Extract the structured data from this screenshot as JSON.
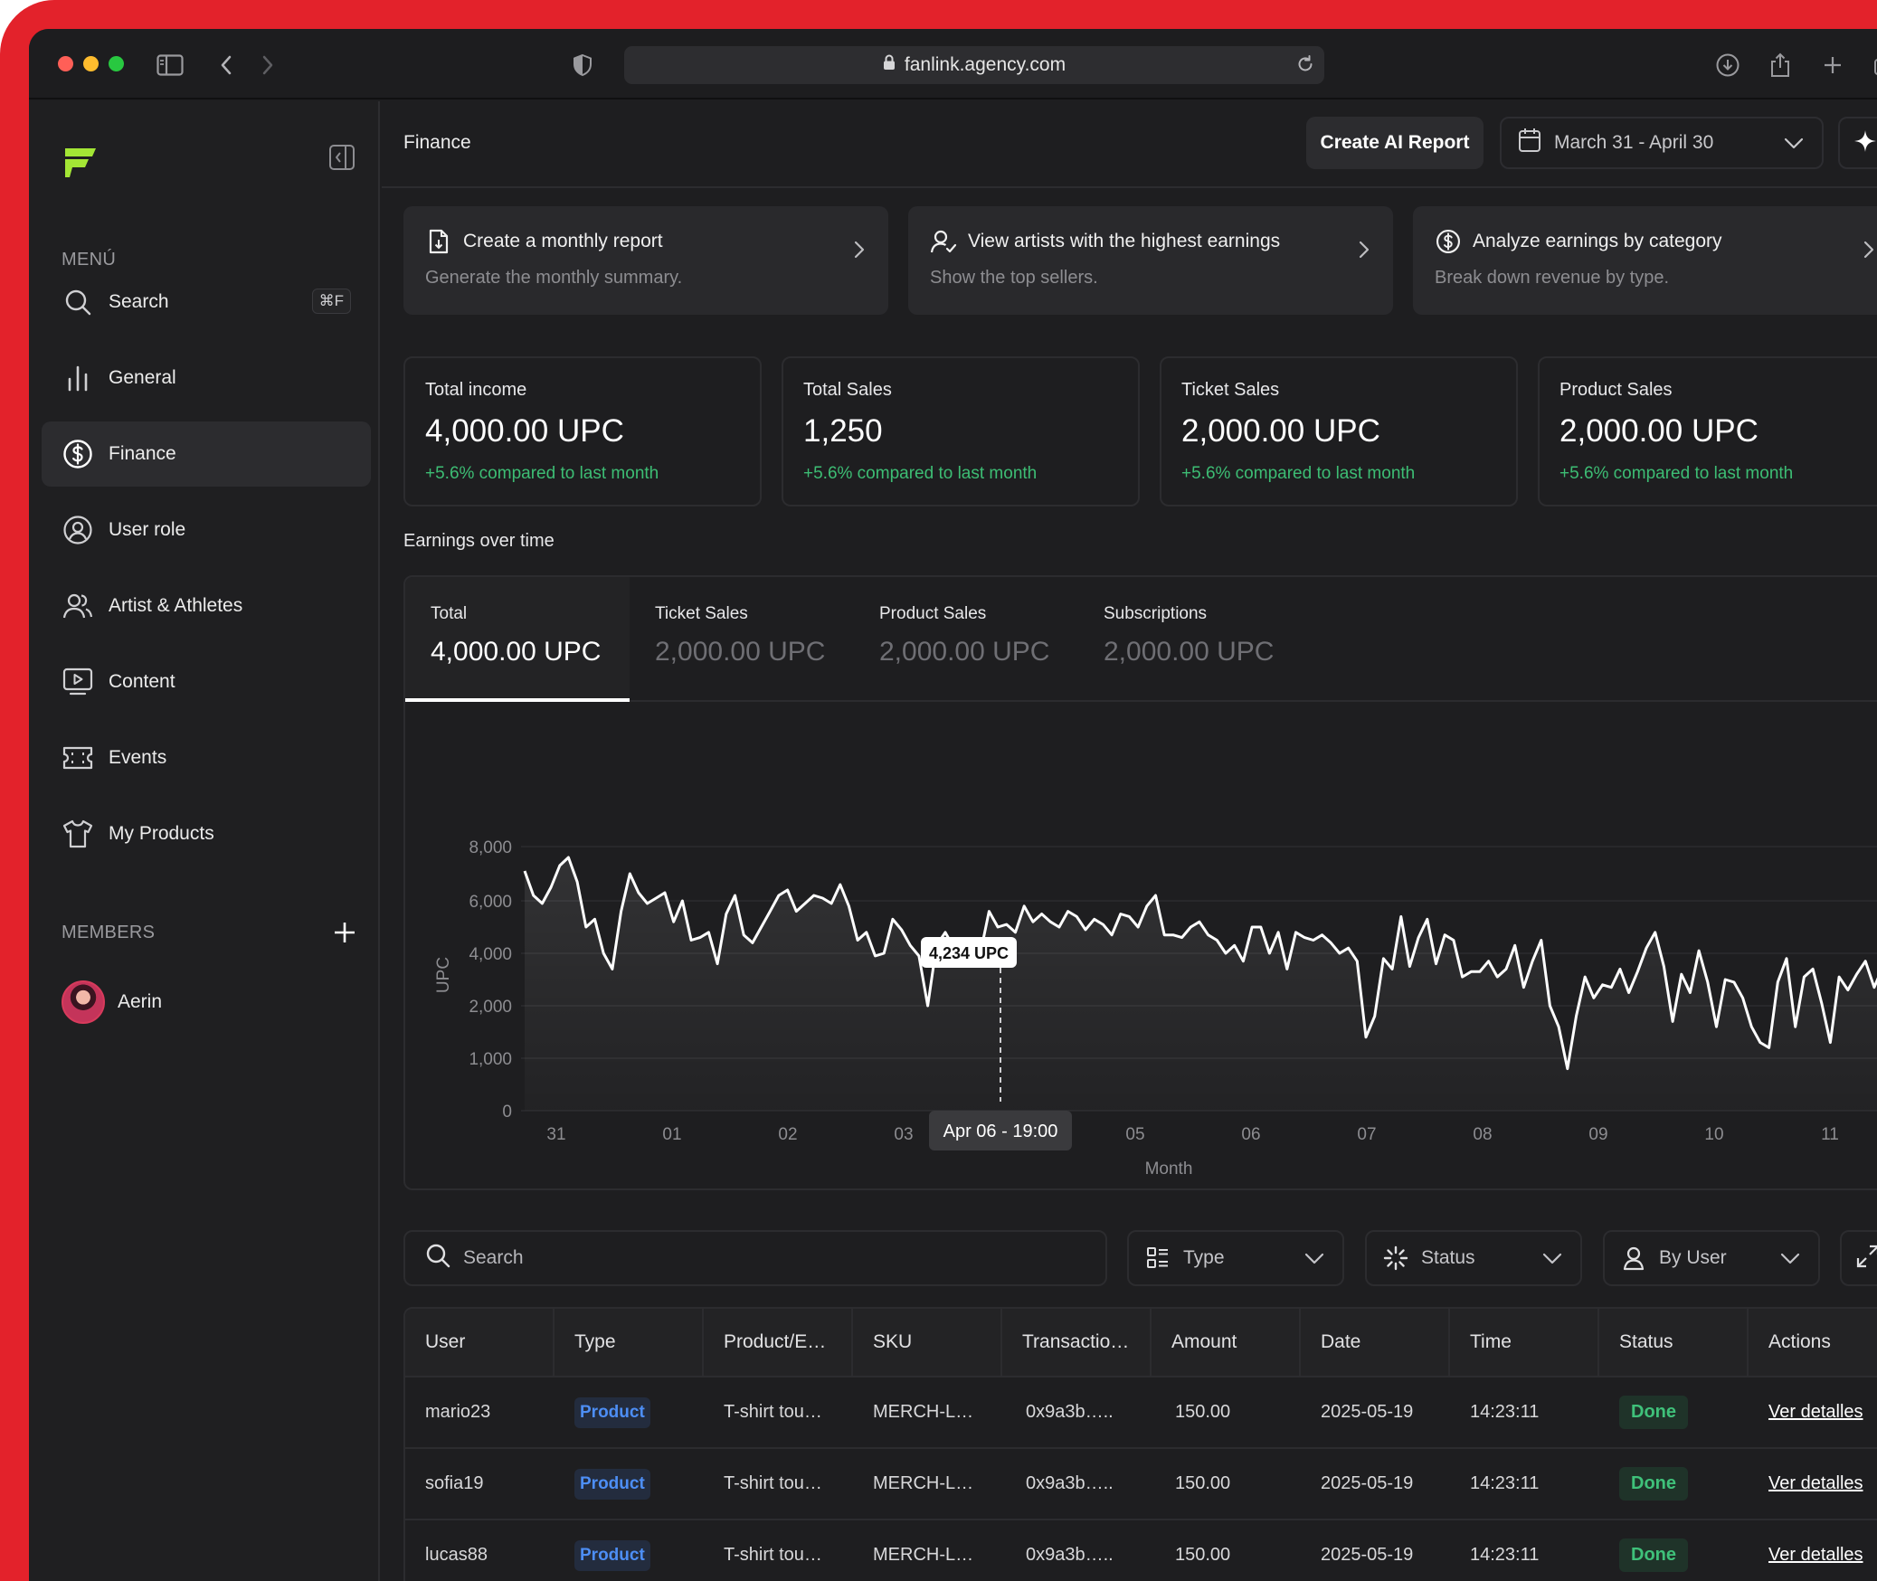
{
  "browser": {
    "url": "fanlink.agency.com"
  },
  "sidebar": {
    "menu_label": "MENÚ",
    "search": {
      "label": "Search",
      "shortcut": "⌘F"
    },
    "items": [
      {
        "label": "General",
        "icon": "bar-chart-icon"
      },
      {
        "label": "Finance",
        "icon": "dollar-circle-icon",
        "active": true
      },
      {
        "label": "User role",
        "icon": "user-circle-icon"
      },
      {
        "label": "Artist & Athletes",
        "icon": "users-icon"
      },
      {
        "label": "Content",
        "icon": "monitor-play-icon"
      },
      {
        "label": "Events",
        "icon": "ticket-icon"
      },
      {
        "label": "My Products",
        "icon": "shirt-icon"
      }
    ],
    "members_label": "MEMBERS",
    "members": [
      {
        "name": "Aerin"
      }
    ]
  },
  "header": {
    "title": "Finance",
    "ai_button": "Create AI Report",
    "date_range": "March 31 - April 30"
  },
  "quick_actions": [
    {
      "title": "Create a monthly report",
      "subtitle": "Generate the monthly summary.",
      "icon": "file-icon"
    },
    {
      "title": "View artists with the highest earnings",
      "subtitle": "Show the top sellers.",
      "icon": "user-check-icon"
    },
    {
      "title": "Analyze earnings by category",
      "subtitle": "Break down revenue by type.",
      "icon": "dollar-circle-icon"
    }
  ],
  "stats": [
    {
      "label": "Total income",
      "value": "4,000.00 UPC",
      "delta": "+5.6% compared to last month"
    },
    {
      "label": "Total Sales",
      "value": "1,250",
      "delta": "+5.6% compared to last month"
    },
    {
      "label": "Ticket Sales",
      "value": "2,000.00 UPC",
      "delta": "+5.6% compared to last month"
    },
    {
      "label": "Product Sales",
      "value": "2,000.00 UPC",
      "delta": "+5.6% compared to last month"
    }
  ],
  "chart_section": {
    "title": "Earnings over time",
    "tabs": [
      {
        "label": "Total",
        "value": "4,000.00 UPC",
        "active": true
      },
      {
        "label": "Ticket Sales",
        "value": "2,000.00 UPC"
      },
      {
        "label": "Product Sales",
        "value": "2,000.00 UPC"
      },
      {
        "label": "Subscriptions",
        "value": "2,000.00 UPC"
      }
    ]
  },
  "chart_data": {
    "type": "area",
    "ylabel": "UPC",
    "xlabel": "Month",
    "yticks": [
      0,
      1000,
      2000,
      4000,
      6000,
      8000
    ],
    "ytick_labels": [
      "0",
      "1,000",
      "2,000",
      "4,000",
      "6,000",
      "8,000"
    ],
    "ylim": [
      0,
      8000
    ],
    "xtick_labels": [
      "31",
      "01",
      "02",
      "03",
      "05",
      "06",
      "07",
      "08",
      "09",
      "10",
      "11"
    ],
    "grid": true,
    "line_color": "#ffffff",
    "tooltip": {
      "value_label": "4,234 UPC",
      "x_label": "Apr 06 - 19:00"
    },
    "series": [
      {
        "values": [
          7100,
          6200,
          5900,
          6500,
          7300,
          7600,
          6700,
          5000,
          5300,
          4000,
          3400,
          5600,
          7000,
          6300,
          5900,
          6100,
          6300,
          5200,
          6000,
          4500,
          4600,
          4800,
          3600,
          5500,
          6200,
          4700,
          4400,
          5000,
          5600,
          6200,
          6400,
          5600,
          5900,
          6200,
          6100,
          5900,
          6600,
          5800,
          4500,
          4800,
          3900,
          4000,
          5300,
          4900,
          4300,
          3900,
          2000,
          4300,
          4800,
          4200,
          3800,
          3600,
          4000,
          5600,
          5000,
          5100,
          4800,
          5800,
          5200,
          5500,
          5200,
          5000,
          5600,
          5400,
          4900,
          5300,
          5100,
          4700,
          5500,
          5400,
          5000,
          5800,
          6200,
          4700,
          4700,
          4600,
          5000,
          5200,
          4700,
          4500,
          4000,
          4300,
          3700,
          5000,
          5000,
          4000,
          4800,
          3400,
          4800,
          4600,
          4500,
          4700,
          4400,
          4000,
          4200,
          3700,
          1400,
          1800,
          3800,
          3400,
          5400,
          3500,
          4600,
          5300,
          3600,
          4700,
          4500,
          3100,
          3300,
          3300,
          3700,
          3100,
          3400,
          4300,
          2700,
          3700,
          4500,
          2000,
          1600,
          800,
          1800,
          3100,
          2300,
          2800,
          2700,
          3400,
          2500,
          3300,
          4200,
          4800,
          3500,
          1700,
          3200,
          2500,
          4100,
          2900,
          1600,
          3000,
          2900,
          2300,
          1600,
          1300,
          1200,
          2900,
          3800,
          1600,
          3100,
          3400,
          2100,
          1300,
          3100,
          2600,
          3200,
          3700,
          2700,
          3500,
          3300,
          2100,
          2300,
          3400,
          3300
        ]
      }
    ]
  },
  "filters": {
    "search_placeholder": "Search",
    "type": "Type",
    "status": "Status",
    "by_user": "By User"
  },
  "table": {
    "columns": [
      "User",
      "Type",
      "Product/E…",
      "SKU",
      "Transactio…",
      "Amount",
      "Date",
      "Time",
      "Status",
      "Actions"
    ],
    "rows": [
      {
        "user": "mario23",
        "type": "Product",
        "product": "T-shirt tou…",
        "sku": "MERCH-L…",
        "tx": "0x9a3b…..",
        "amount": "150.00",
        "date": "2025-05-19",
        "time": "14:23:11",
        "status": "Done",
        "action": "Ver detalles"
      },
      {
        "user": "sofia19",
        "type": "Product",
        "product": "T-shirt tou…",
        "sku": "MERCH-L…",
        "tx": "0x9a3b…..",
        "amount": "150.00",
        "date": "2025-05-19",
        "time": "14:23:11",
        "status": "Done",
        "action": "Ver detalles"
      },
      {
        "user": "lucas88",
        "type": "Product",
        "product": "T-shirt tou…",
        "sku": "MERCH-L…",
        "tx": "0x9a3b…..",
        "amount": "150.00",
        "date": "2025-05-19",
        "time": "14:23:11",
        "status": "Done",
        "action": "Ver detalles"
      }
    ]
  },
  "colors": {
    "brand_green": "#a3e635",
    "frame_red": "#e3222b",
    "positive": "#3dbd74",
    "badge_blue": "#4d8ef5"
  }
}
